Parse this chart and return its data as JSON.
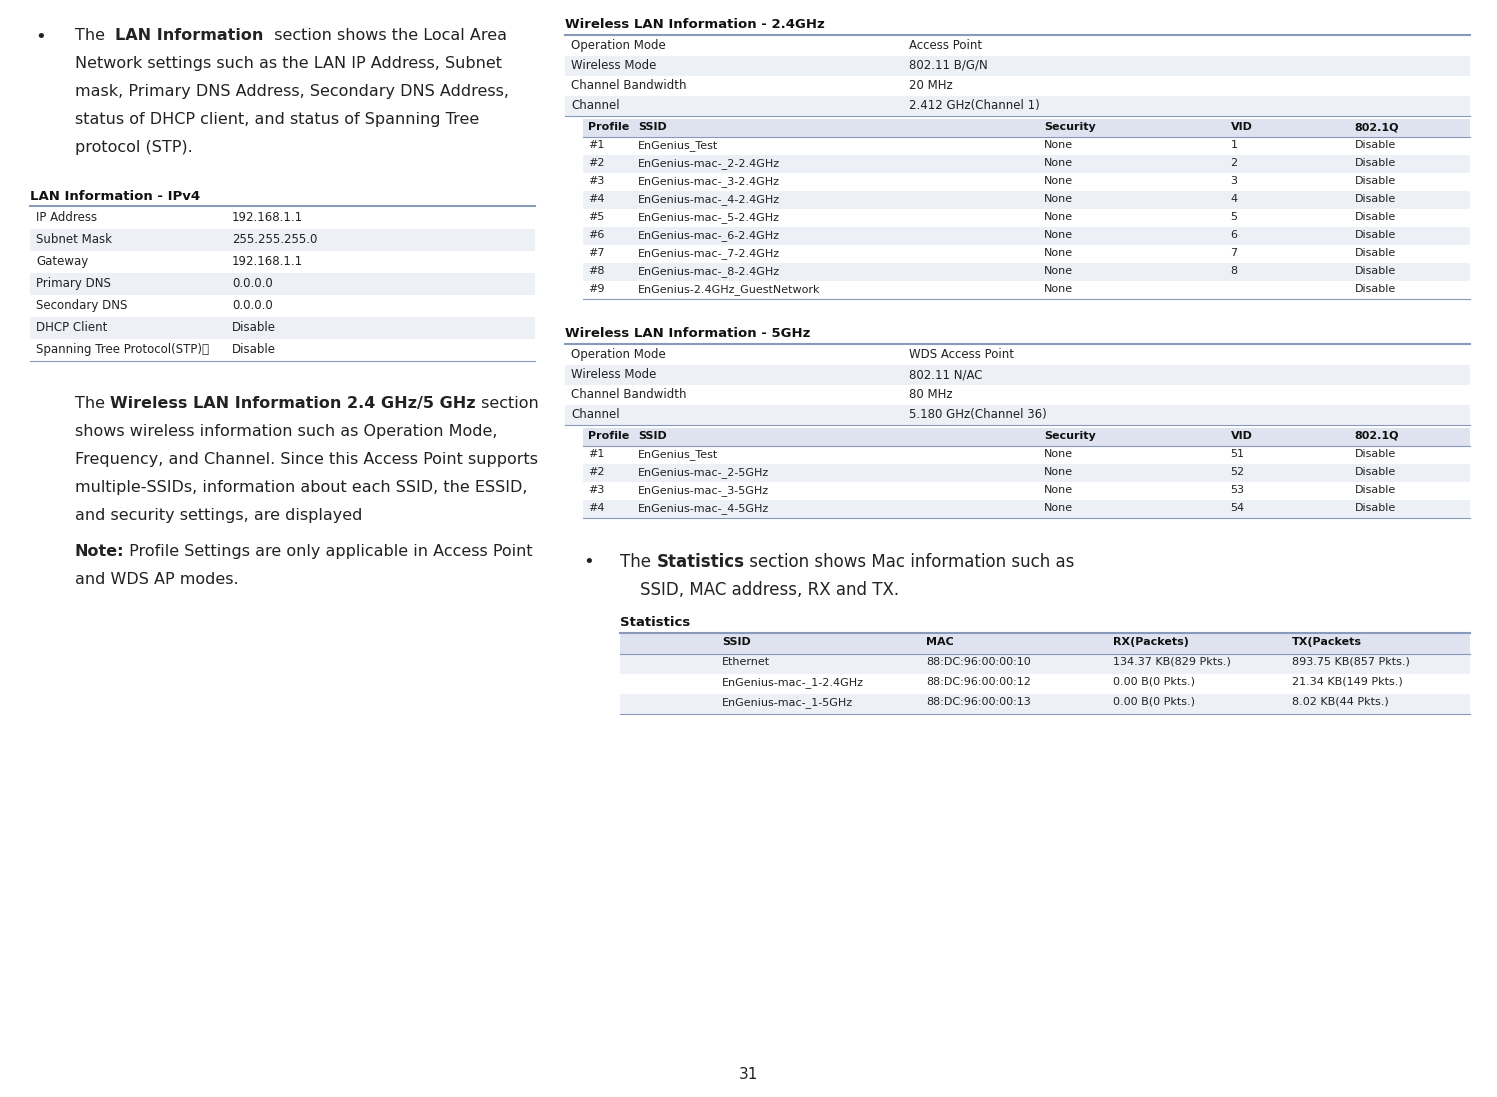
{
  "page_bg": "#ffffff",
  "lan_table_title": "LAN Information - IPv4",
  "lan_table_rows": [
    [
      "IP Address",
      "192.168.1.1"
    ],
    [
      "Subnet Mask",
      "255.255.255.0"
    ],
    [
      "Gateway",
      "192.168.1.1"
    ],
    [
      "Primary DNS",
      "0.0.0.0"
    ],
    [
      "Secondary DNS",
      "0.0.0.0"
    ],
    [
      "DHCP Client",
      "Disable"
    ],
    [
      "Spanning Tree Protocol(STP)ⓘ",
      "Disable"
    ]
  ],
  "lan_table_alt_rows": [
    1,
    3,
    5
  ],
  "wlan24_title": "Wireless LAN Information - 2.4GHz",
  "wlan24_info": [
    [
      "Operation Mode",
      "Access Point"
    ],
    [
      "Wireless Mode",
      "802.11 B/G/N"
    ],
    [
      "Channel Bandwidth",
      "20 MHz"
    ],
    [
      "Channel",
      "2.412 GHz(Channel 1)"
    ]
  ],
  "wlan24_alt_rows": [
    1,
    3
  ],
  "wlan24_ssid_header": [
    "Profile",
    "SSID",
    "Security",
    "VID",
    "802.1Q"
  ],
  "wlan24_ssid_rows": [
    [
      "#1",
      "EnGenius_Test",
      "None",
      "1",
      "Disable"
    ],
    [
      "#2",
      "EnGenius-mac-_2-2.4GHz",
      "None",
      "2",
      "Disable"
    ],
    [
      "#3",
      "EnGenius-mac-_3-2.4GHz",
      "None",
      "3",
      "Disable"
    ],
    [
      "#4",
      "EnGenius-mac-_4-2.4GHz",
      "None",
      "4",
      "Disable"
    ],
    [
      "#5",
      "EnGenius-mac-_5-2.4GHz",
      "None",
      "5",
      "Disable"
    ],
    [
      "#6",
      "EnGenius-mac-_6-2.4GHz",
      "None",
      "6",
      "Disable"
    ],
    [
      "#7",
      "EnGenius-mac-_7-2.4GHz",
      "None",
      "7",
      "Disable"
    ],
    [
      "#8",
      "EnGenius-mac-_8-2.4GHz",
      "None",
      "8",
      "Disable"
    ],
    [
      "#9",
      "EnGenius-2.4GHz_GuestNetwork",
      "None",
      "",
      "Disable"
    ]
  ],
  "wlan24_ssid_alt_rows": [
    1,
    3,
    5,
    7
  ],
  "wlan5_title": "Wireless LAN Information - 5GHz",
  "wlan5_info": [
    [
      "Operation Mode",
      "WDS Access Point"
    ],
    [
      "Wireless Mode",
      "802.11 N/AC"
    ],
    [
      "Channel Bandwidth",
      "80 MHz"
    ],
    [
      "Channel",
      "5.180 GHz(Channel 36)"
    ]
  ],
  "wlan5_alt_rows": [
    1,
    3
  ],
  "wlan5_ssid_header": [
    "Profile",
    "SSID",
    "Security",
    "VID",
    "802.1Q"
  ],
  "wlan5_ssid_rows": [
    [
      "#1",
      "EnGenius_Test",
      "None",
      "51",
      "Disable"
    ],
    [
      "#2",
      "EnGenius-mac-_2-5GHz",
      "None",
      "52",
      "Disable"
    ],
    [
      "#3",
      "EnGenius-mac-_3-5GHz",
      "None",
      "53",
      "Disable"
    ],
    [
      "#4",
      "EnGenius-mac-_4-5GHz",
      "None",
      "54",
      "Disable"
    ]
  ],
  "wlan5_ssid_alt_rows": [
    1,
    3
  ],
  "stats_title": "Statistics",
  "stats_header": [
    "SSID",
    "MAC",
    "RX(Packets)",
    "TX(Packets"
  ],
  "stats_rows": [
    [
      "Ethernet",
      "88:DC:96:00:00:10",
      "134.37 KB(829 Pkts.)",
      "893.75 KB(857 Pkts.)"
    ],
    [
      "EnGenius-mac-_1-2.4GHz",
      "88:DC:96:00:00:12",
      "0.00 B(0 Pkts.)",
      "21.34 KB(149 Pkts.)"
    ],
    [
      "EnGenius-mac-_1-5GHz",
      "88:DC:96:00:00:13",
      "0.00 B(0 Pkts.)",
      "8.02 KB(44 Pkts.)"
    ]
  ],
  "stats_alt_rows": [
    0,
    2
  ],
  "page_number": "31",
  "header_color": "#dfe3f0",
  "alt_row_color": "#eef0f8",
  "border_color": "#8899bb",
  "title_color": "#111111",
  "text_color": "#222222",
  "note_color": "#111111"
}
